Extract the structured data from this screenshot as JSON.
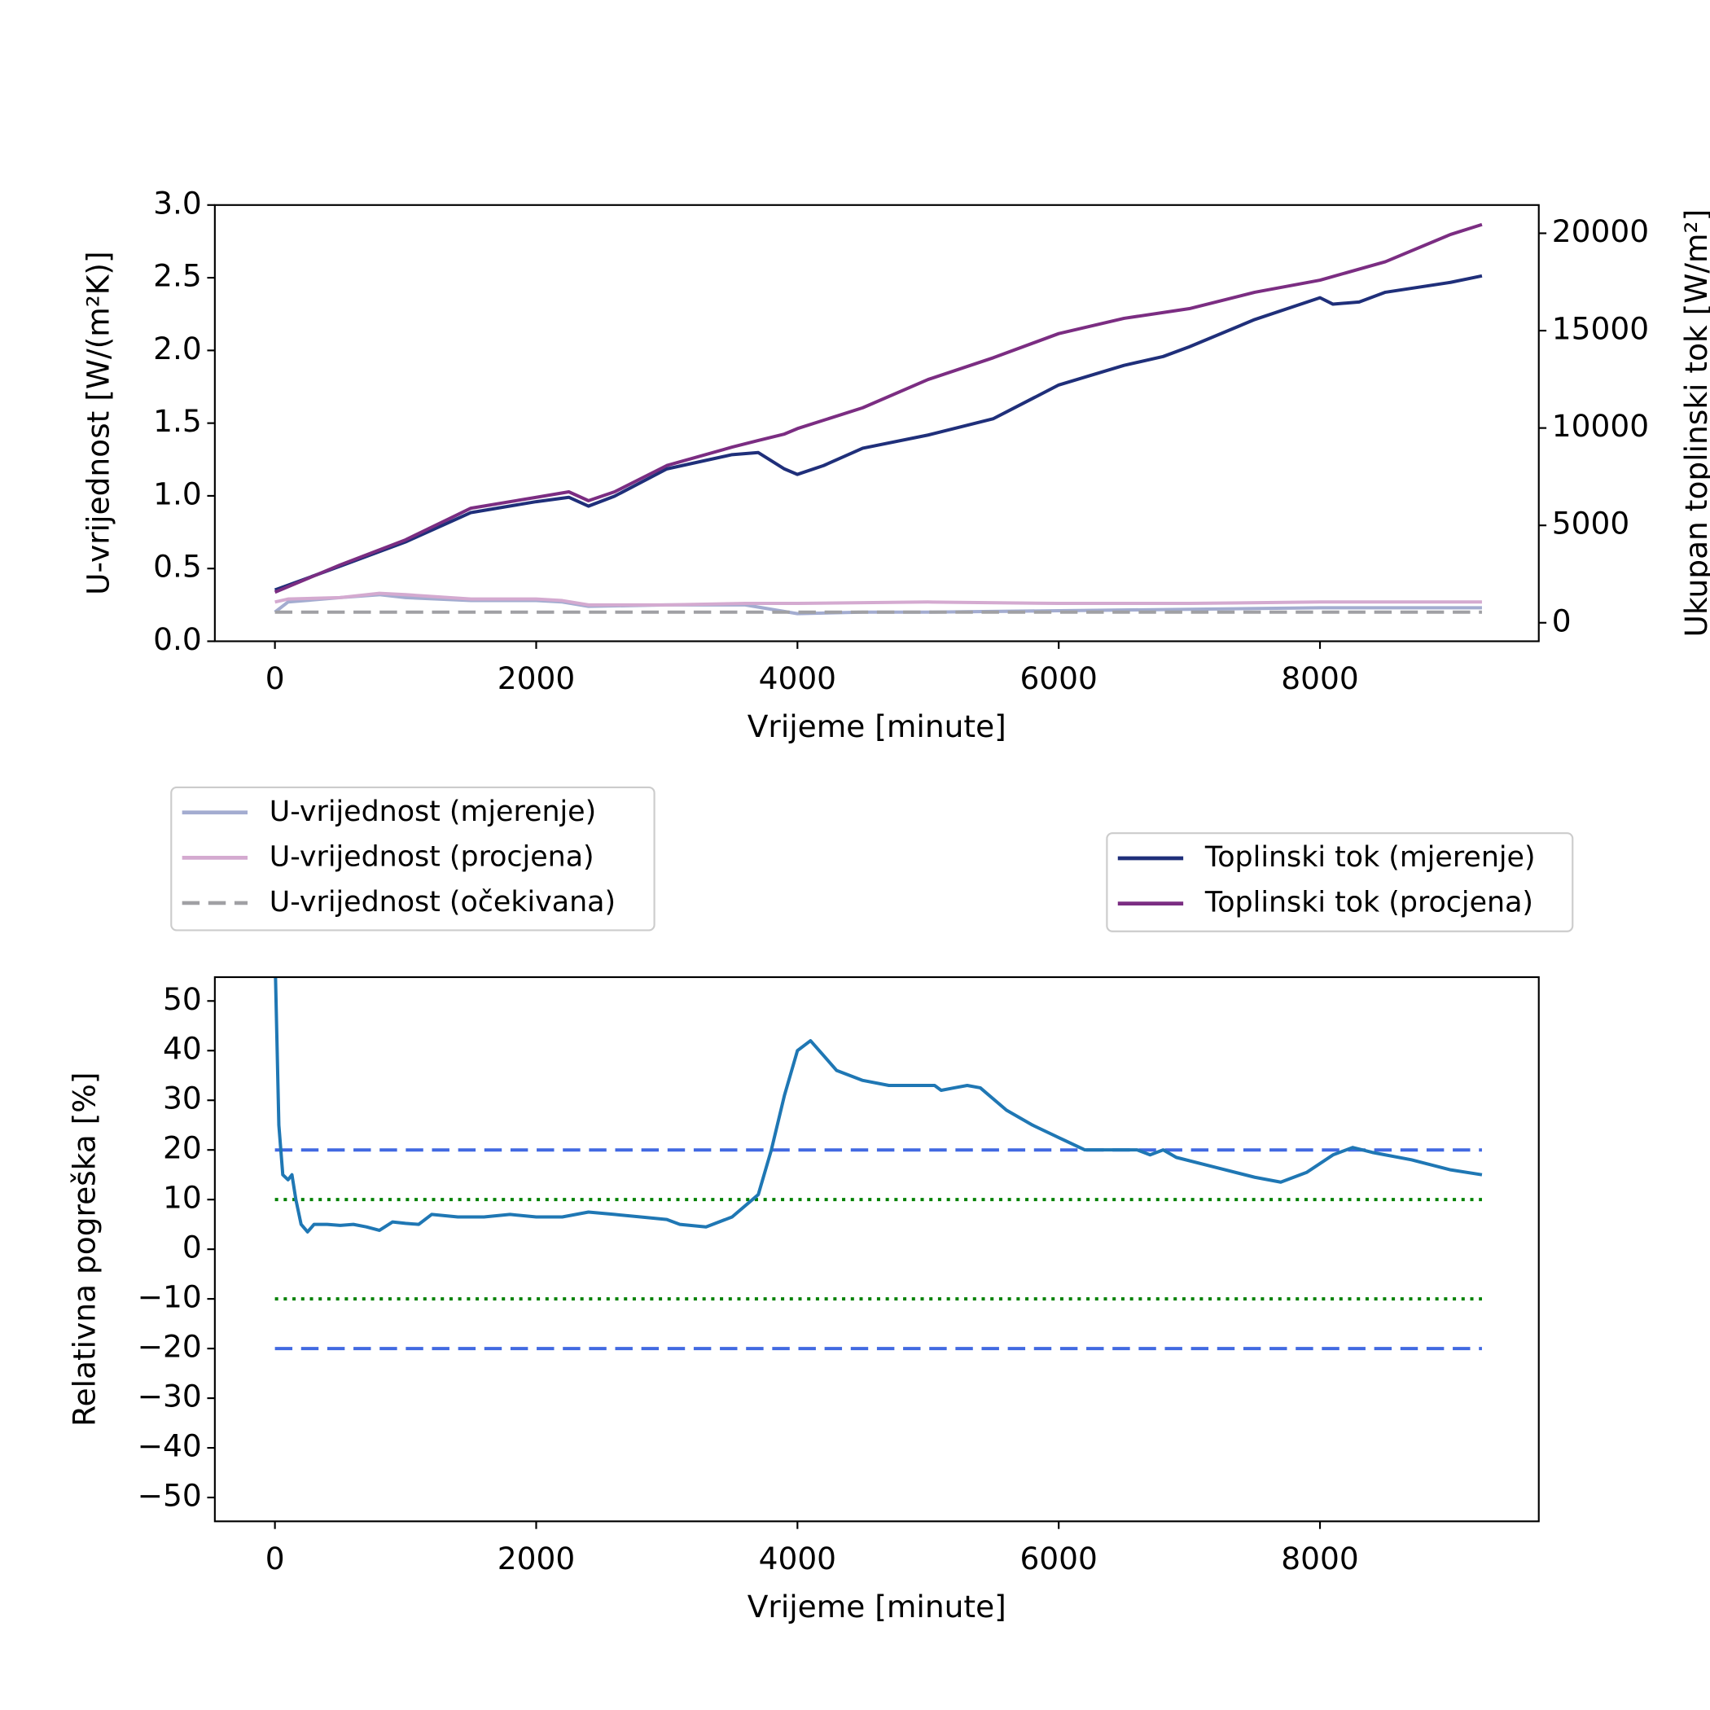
{
  "chart_data": [
    {
      "type": "line",
      "xlabel": "Vrijeme [minute]",
      "ylabel": "U-vrijednost [W/(m²K)]",
      "y2label": "Ukupan toplinski tok [W/m²]",
      "xlim": [
        -460,
        9675
      ],
      "xticks": [
        0,
        2000,
        4000,
        6000,
        8000
      ],
      "ylim": [
        0,
        3
      ],
      "yticks": [
        {
          "value": 0,
          "label": "0.0"
        },
        0.5,
        {
          "value": 1,
          "label": "1.0"
        },
        1.5,
        {
          "value": 2,
          "label": "2.0"
        },
        2.5,
        {
          "value": 3,
          "label": "3.0"
        }
      ],
      "y2lim": [
        -950,
        21450
      ],
      "y2ticks": [
        0,
        5000,
        10000,
        15000,
        20000
      ],
      "series": [
        {
          "name": "U-vrijednost (mjerenje)",
          "color": "#a3acd0",
          "style": "solid",
          "x": [
            0,
            100,
            500,
            800,
            1000,
            1500,
            2000,
            2200,
            2400,
            3000,
            3600,
            3800,
            4000,
            4500,
            5000,
            6000,
            7000,
            8000,
            9240
          ],
          "values": [
            0.2,
            0.27,
            0.3,
            0.32,
            0.3,
            0.28,
            0.28,
            0.27,
            0.24,
            0.25,
            0.25,
            0.22,
            0.19,
            0.2,
            0.2,
            0.21,
            0.22,
            0.23,
            0.23
          ]
        },
        {
          "name": "U-vrijednost (procjena)",
          "color": "#d4aad0",
          "style": "solid",
          "x": [
            0,
            100,
            500,
            800,
            1000,
            1500,
            2000,
            2200,
            2400,
            3000,
            3600,
            3800,
            4000,
            5000,
            6000,
            7000,
            8000,
            9240
          ],
          "values": [
            0.27,
            0.29,
            0.3,
            0.33,
            0.32,
            0.29,
            0.29,
            0.28,
            0.25,
            0.25,
            0.26,
            0.26,
            0.26,
            0.27,
            0.26,
            0.26,
            0.27,
            0.27
          ]
        },
        {
          "name": "U-vrijednost (očekivana)",
          "color": "#a0a0a4",
          "style": "dashed",
          "x": [
            0,
            9240
          ],
          "values": [
            0.2,
            0.2
          ]
        },
        {
          "name": "Toplinski tok (mjerenje)",
          "color": "#1f2f7a",
          "style": "solid",
          "axis": "y2",
          "x": [
            0,
            500,
            1000,
            1500,
            2000,
            2250,
            2400,
            2600,
            3000,
            3500,
            3700,
            3900,
            4000,
            4200,
            4500,
            5000,
            5500,
            6000,
            6500,
            6800,
            7000,
            7500,
            8000,
            8100,
            8300,
            8500,
            9000,
            9240
          ],
          "values": [
            1680,
            2910,
            4150,
            5660,
            6220,
            6440,
            5990,
            6500,
            7900,
            8630,
            8740,
            7900,
            7620,
            8070,
            8960,
            9640,
            10480,
            12210,
            13220,
            13670,
            14170,
            15570,
            16690,
            16360,
            16470,
            16970,
            17480,
            17810
          ]
        },
        {
          "name": "Toplinski tok (procjena)",
          "color": "#7b2d82",
          "style": "solid",
          "axis": "y2",
          "x": [
            0,
            500,
            1000,
            1500,
            2000,
            2250,
            2400,
            2600,
            3000,
            3500,
            3700,
            3900,
            4000,
            4500,
            5000,
            5500,
            6000,
            6500,
            7000,
            7500,
            8000,
            8500,
            9000,
            9240
          ],
          "values": [
            1570,
            2970,
            4260,
            5880,
            6440,
            6720,
            6270,
            6720,
            8070,
            9020,
            9360,
            9690,
            9970,
            11040,
            12490,
            13610,
            14850,
            15630,
            16130,
            16970,
            17590,
            18540,
            19940,
            20450
          ]
        }
      ]
    },
    {
      "type": "line",
      "xlabel": "Vrijeme [minute]",
      "ylabel": "Relativna pogreška [%]",
      "xlim": [
        -460,
        9675
      ],
      "xticks": [
        0,
        2000,
        4000,
        6000,
        8000
      ],
      "ylim": [
        -54.8,
        54.8
      ],
      "yticks": [
        {
          "value": -50,
          "label": "−50"
        },
        {
          "value": -40,
          "label": "−40"
        },
        {
          "value": -30,
          "label": "−30"
        },
        {
          "value": -20,
          "label": "−20"
        },
        {
          "value": -10,
          "label": "−10"
        },
        0,
        10,
        20,
        30,
        40,
        50
      ],
      "reference_lines": [
        {
          "value": 20,
          "x": [
            0,
            9240
          ],
          "color": "#4169e1",
          "style": "dashed"
        },
        {
          "value": -20,
          "x": [
            0,
            9240
          ],
          "color": "#4169e1",
          "style": "dashed"
        },
        {
          "value": 10,
          "x": [
            0,
            9240
          ],
          "color": "#008000",
          "style": "dotted"
        },
        {
          "value": -10,
          "x": [
            0,
            9240
          ],
          "color": "#008000",
          "style": "dotted"
        }
      ],
      "series": [
        {
          "color": "#1f77b4",
          "style": "solid",
          "x": [
            0,
            30,
            60,
            100,
            130,
            160,
            200,
            250,
            300,
            400,
            500,
            600,
            700,
            800,
            900,
            1000,
            1100,
            1200,
            1400,
            1600,
            1800,
            2000,
            2200,
            2400,
            2600,
            2800,
            3000,
            3100,
            3300,
            3500,
            3700,
            3800,
            3900,
            4000,
            4100,
            4200,
            4300,
            4500,
            4700,
            4900,
            5050,
            5100,
            5200,
            5300,
            5400,
            5600,
            5800,
            6000,
            6200,
            6400,
            6600,
            6700,
            6800,
            6900,
            7200,
            7500,
            7700,
            7900,
            8100,
            8250,
            8400,
            8700,
            9000,
            9240
          ],
          "values": [
            60,
            25,
            15,
            14,
            15,
            10,
            5,
            3.5,
            5,
            5,
            4.8,
            5,
            4.5,
            3.8,
            5.5,
            5.2,
            5,
            7,
            6.5,
            6.5,
            7,
            6.5,
            6.5,
            7.5,
            7,
            6.5,
            6,
            5,
            4.5,
            6.5,
            11,
            20,
            31,
            40,
            42,
            39,
            36,
            34,
            33,
            33,
            33,
            32,
            32.5,
            33,
            32.5,
            28,
            25,
            22.5,
            20,
            20,
            20,
            19,
            20,
            18.5,
            16.5,
            14.5,
            13.5,
            15.5,
            19,
            20.5,
            19.5,
            18,
            16,
            15
          ]
        }
      ]
    }
  ]
}
